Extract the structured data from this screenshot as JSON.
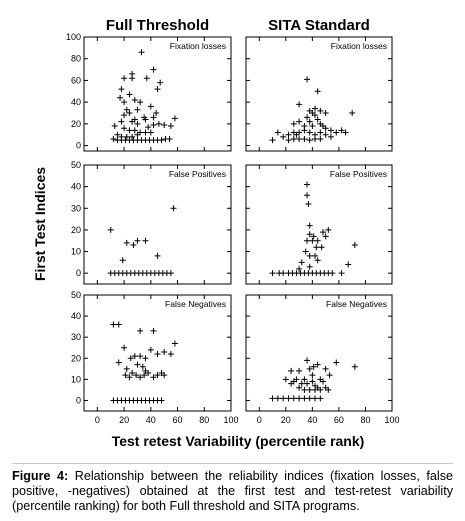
{
  "chart_data": {
    "type": "scatter",
    "columns": [
      "Full Threshold",
      "SITA Standard"
    ],
    "xlabel": "Test retest Variability (percentile rank)",
    "ylabel": "First Test Indices",
    "xlim": [
      -10,
      100
    ],
    "xticks": [
      0,
      20,
      40,
      60,
      80,
      100
    ],
    "rows": [
      {
        "label": "Fixation losses",
        "ylim": [
          -5,
          100
        ],
        "yticks": [
          0,
          20,
          40,
          60,
          80,
          100
        ]
      },
      {
        "label": "False Positives",
        "ylim": [
          -5,
          50
        ],
        "yticks": [
          0,
          10,
          20,
          30,
          40,
          50
        ]
      },
      {
        "label": "False Negatives",
        "ylim": [
          -5,
          50
        ],
        "yticks": [
          0,
          10,
          20,
          30,
          40,
          50
        ]
      }
    ],
    "grid": false,
    "marker": "+",
    "panels": [
      {
        "column": "Full Threshold",
        "row": "Fixation losses",
        "points": [
          [
            33,
            86
          ],
          [
            20,
            62
          ],
          [
            26,
            62
          ],
          [
            26,
            66
          ],
          [
            42,
            70
          ],
          [
            37,
            62
          ],
          [
            47,
            58
          ],
          [
            45,
            52
          ],
          [
            18,
            52
          ],
          [
            24,
            47
          ],
          [
            28,
            42
          ],
          [
            17,
            44
          ],
          [
            20,
            40
          ],
          [
            32,
            40
          ],
          [
            40,
            36
          ],
          [
            22,
            33
          ],
          [
            30,
            33
          ],
          [
            24,
            30
          ],
          [
            35,
            26
          ],
          [
            42,
            26
          ],
          [
            44,
            30
          ],
          [
            28,
            24
          ],
          [
            36,
            24
          ],
          [
            18,
            22
          ],
          [
            26,
            22
          ],
          [
            30,
            20
          ],
          [
            46,
            20
          ],
          [
            38,
            17
          ],
          [
            50,
            19
          ],
          [
            55,
            18
          ],
          [
            58,
            25
          ],
          [
            13,
            18
          ],
          [
            20,
            16
          ],
          [
            24,
            14
          ],
          [
            28,
            14
          ],
          [
            32,
            12
          ],
          [
            36,
            12
          ],
          [
            40,
            12
          ],
          [
            15,
            10
          ],
          [
            18,
            8
          ],
          [
            22,
            8
          ],
          [
            26,
            8
          ],
          [
            30,
            10
          ],
          [
            12,
            6
          ],
          [
            15,
            5
          ],
          [
            18,
            5
          ],
          [
            21,
            5
          ],
          [
            24,
            5
          ],
          [
            27,
            5
          ],
          [
            30,
            5
          ],
          [
            33,
            5
          ],
          [
            36,
            5
          ],
          [
            39,
            5
          ],
          [
            42,
            5
          ],
          [
            45,
            5
          ],
          [
            48,
            5
          ],
          [
            51,
            6
          ],
          [
            54,
            6
          ],
          [
            42,
            19
          ],
          [
            20,
            28
          ]
        ]
      },
      {
        "column": "SITA Standard",
        "row": "Fixation losses",
        "points": [
          [
            36,
            61
          ],
          [
            44,
            50
          ],
          [
            42,
            34
          ],
          [
            46,
            32
          ],
          [
            50,
            30
          ],
          [
            30,
            38
          ],
          [
            38,
            32
          ],
          [
            42,
            28
          ],
          [
            44,
            24
          ],
          [
            38,
            22
          ],
          [
            30,
            22
          ],
          [
            26,
            20
          ],
          [
            34,
            18
          ],
          [
            40,
            18
          ],
          [
            46,
            20
          ],
          [
            50,
            16
          ],
          [
            54,
            14
          ],
          [
            62,
            14
          ],
          [
            70,
            30
          ],
          [
            58,
            12
          ],
          [
            65,
            12
          ],
          [
            14,
            12
          ],
          [
            18,
            8
          ],
          [
            22,
            10
          ],
          [
            26,
            12
          ],
          [
            30,
            12
          ],
          [
            34,
            14
          ],
          [
            38,
            12
          ],
          [
            42,
            10
          ],
          [
            46,
            12
          ],
          [
            22,
            5
          ],
          [
            26,
            6
          ],
          [
            30,
            6
          ],
          [
            34,
            6
          ],
          [
            38,
            5
          ],
          [
            42,
            6
          ],
          [
            46,
            6
          ],
          [
            50,
            10
          ],
          [
            54,
            8
          ],
          [
            28,
            10
          ],
          [
            10,
            5
          ],
          [
            36,
            26
          ],
          [
            40,
            30
          ],
          [
            48,
            18
          ]
        ]
      },
      {
        "column": "Full Threshold",
        "row": "False Positives",
        "points": [
          [
            57,
            30
          ],
          [
            10,
            20
          ],
          [
            30,
            15
          ],
          [
            36,
            15
          ],
          [
            22,
            14
          ],
          [
            27,
            13
          ],
          [
            45,
            8
          ],
          [
            19,
            6
          ],
          [
            10,
            0
          ],
          [
            13,
            0
          ],
          [
            16,
            0
          ],
          [
            19,
            0
          ],
          [
            22,
            0
          ],
          [
            25,
            0
          ],
          [
            28,
            0
          ],
          [
            31,
            0
          ],
          [
            34,
            0
          ],
          [
            37,
            0
          ],
          [
            40,
            0
          ],
          [
            43,
            0
          ],
          [
            46,
            0
          ],
          [
            49,
            0
          ],
          [
            52,
            0
          ],
          [
            55,
            0
          ]
        ]
      },
      {
        "column": "SITA Standard",
        "row": "False Positives",
        "points": [
          [
            36,
            41
          ],
          [
            36,
            36
          ],
          [
            37,
            32
          ],
          [
            52,
            20
          ],
          [
            38,
            22
          ],
          [
            41,
            17
          ],
          [
            44,
            15
          ],
          [
            47,
            12
          ],
          [
            43,
            12
          ],
          [
            48,
            19
          ],
          [
            38,
            18
          ],
          [
            40,
            15
          ],
          [
            35,
            10
          ],
          [
            38,
            8
          ],
          [
            32,
            5
          ],
          [
            44,
            6
          ],
          [
            72,
            13
          ],
          [
            67,
            4
          ],
          [
            36,
            15
          ],
          [
            50,
            17
          ],
          [
            10,
            0
          ],
          [
            15,
            0
          ],
          [
            18,
            0
          ],
          [
            22,
            0
          ],
          [
            25,
            0
          ],
          [
            28,
            0
          ],
          [
            31,
            0
          ],
          [
            34,
            0
          ],
          [
            37,
            0
          ],
          [
            40,
            0
          ],
          [
            43,
            0
          ],
          [
            46,
            0
          ],
          [
            49,
            0
          ],
          [
            52,
            0
          ],
          [
            55,
            0
          ],
          [
            62,
            0
          ],
          [
            30,
            2
          ],
          [
            38,
            3
          ],
          [
            42,
            8
          ]
        ]
      },
      {
        "column": "Full Threshold",
        "row": "False Negatives",
        "points": [
          [
            12,
            36
          ],
          [
            16,
            36
          ],
          [
            32,
            33
          ],
          [
            42,
            33
          ],
          [
            58,
            27
          ],
          [
            20,
            25
          ],
          [
            25,
            20
          ],
          [
            28,
            21
          ],
          [
            32,
            21
          ],
          [
            36,
            20
          ],
          [
            40,
            24
          ],
          [
            45,
            22
          ],
          [
            50,
            23
          ],
          [
            55,
            22
          ],
          [
            30,
            17
          ],
          [
            34,
            16
          ],
          [
            22,
            15
          ],
          [
            26,
            13
          ],
          [
            29,
            12
          ],
          [
            32,
            11
          ],
          [
            35,
            12
          ],
          [
            38,
            13
          ],
          [
            42,
            11
          ],
          [
            45,
            12
          ],
          [
            48,
            13
          ],
          [
            50,
            12
          ],
          [
            21,
            12
          ],
          [
            24,
            11
          ],
          [
            36,
            14
          ],
          [
            16,
            18
          ],
          [
            12,
            0
          ],
          [
            15,
            0
          ],
          [
            18,
            0
          ],
          [
            21,
            0
          ],
          [
            24,
            0
          ],
          [
            27,
            0
          ],
          [
            30,
            0
          ],
          [
            33,
            0
          ],
          [
            36,
            0
          ],
          [
            39,
            0
          ],
          [
            42,
            0
          ],
          [
            45,
            0
          ],
          [
            48,
            0
          ]
        ]
      },
      {
        "column": "SITA Standard",
        "row": "False Negatives",
        "points": [
          [
            36,
            19
          ],
          [
            58,
            18
          ],
          [
            44,
            17
          ],
          [
            50,
            15
          ],
          [
            53,
            12
          ],
          [
            72,
            16
          ],
          [
            24,
            14
          ],
          [
            30,
            14
          ],
          [
            34,
            10
          ],
          [
            38,
            15
          ],
          [
            41,
            16
          ],
          [
            46,
            10
          ],
          [
            48,
            9
          ],
          [
            32,
            8
          ],
          [
            36,
            8
          ],
          [
            40,
            9
          ],
          [
            42,
            7
          ],
          [
            44,
            6
          ],
          [
            50,
            6
          ],
          [
            20,
            10
          ],
          [
            24,
            8
          ],
          [
            26,
            9
          ],
          [
            28,
            10
          ],
          [
            30,
            6
          ],
          [
            34,
            5
          ],
          [
            38,
            5
          ],
          [
            42,
            5
          ],
          [
            46,
            5
          ],
          [
            52,
            5
          ],
          [
            10,
            1
          ],
          [
            14,
            1
          ],
          [
            18,
            1
          ],
          [
            22,
            1
          ],
          [
            26,
            1
          ],
          [
            30,
            1
          ],
          [
            34,
            1
          ],
          [
            38,
            1
          ],
          [
            42,
            1
          ],
          [
            46,
            1
          ],
          [
            40,
            12
          ]
        ]
      }
    ]
  },
  "caption": {
    "label": "Figure 4:",
    "text": " Relationship between the reliability indices (fixation losses, false positive, -negatives) obtained at the first test and test-retest variability (percentile ranking) for both Full threshold and SITA programs."
  }
}
